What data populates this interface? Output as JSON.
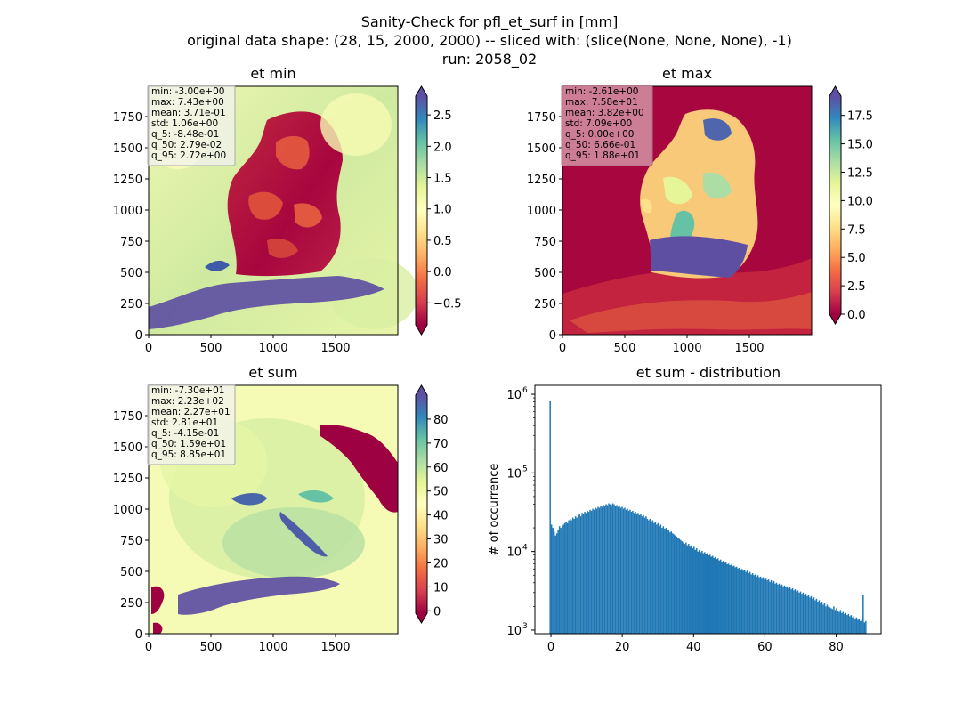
{
  "figure": {
    "title_lines": [
      "Sanity-Check for pfl_et_surf in [mm]",
      "original data shape: (28, 15, 2000, 2000) -- sliced with: (slice(None, None, None), -1)",
      "run: 2058_02"
    ]
  },
  "colors": {
    "spectral": [
      "#9e0142",
      "#d53e4f",
      "#f46d43",
      "#fdae61",
      "#fee08b",
      "#ffffbf",
      "#e6f598",
      "#abdda4",
      "#66c2a5",
      "#3288bd",
      "#5e4fa2"
    ],
    "hist_bar": "#1f77b4",
    "stats_box_light": "#f2f2f2",
    "stats_box_dark": "#d08ba0"
  },
  "chart_data": [
    {
      "type": "heatmap",
      "title": "et min",
      "x_ticks": [
        "0",
        "500",
        "1000",
        "1500"
      ],
      "y_ticks": [
        "0",
        "250",
        "500",
        "750",
        "1000",
        "1250",
        "1500",
        "1750"
      ],
      "xlim": [
        0,
        2000
      ],
      "ylim": [
        0,
        2000
      ],
      "colorbar": {
        "min": -0.85,
        "max": 2.8,
        "ticks": [
          -0.5,
          0.0,
          0.5,
          1.0,
          1.5,
          2.0,
          2.5
        ],
        "tick_labels": [
          "−0.5",
          "0.0",
          "0.5",
          "1.0",
          "1.5",
          "2.0",
          "2.5"
        ],
        "extend": "both"
      },
      "stats": [
        "min: -3.00e+00",
        "max: 7.43e+00",
        "mean: 3.71e-01",
        "std: 1.06e+00",
        "q_5: -8.48e-01",
        "q_50: 2.79e-02",
        "q_95: 2.72e+00"
      ]
    },
    {
      "type": "heatmap",
      "title": "et max",
      "x_ticks": [
        "0",
        "500",
        "1000",
        "1500"
      ],
      "y_ticks": [
        "0",
        "250",
        "500",
        "750",
        "1000",
        "1250",
        "1500",
        "1750"
      ],
      "xlim": [
        0,
        2000
      ],
      "ylim": [
        0,
        2000
      ],
      "colorbar": {
        "min": 0.0,
        "max": 19.2,
        "ticks": [
          0.0,
          2.5,
          5.0,
          7.5,
          10.0,
          12.5,
          15.0,
          17.5
        ],
        "tick_labels": [
          "0.0",
          "2.5",
          "5.0",
          "7.5",
          "10.0",
          "12.5",
          "15.0",
          "17.5"
        ],
        "extend": "both"
      },
      "stats": [
        "min: -2.61e+00",
        "max: 7.58e+01",
        "mean: 3.82e+00",
        "std: 7.09e+00",
        "q_5: 0.00e+00",
        "q_50: 6.66e-01",
        "q_95: 1.88e+01"
      ]
    },
    {
      "type": "heatmap",
      "title": "et sum",
      "x_ticks": [
        "0",
        "500",
        "1000",
        "1500"
      ],
      "y_ticks": [
        "0",
        "250",
        "500",
        "750",
        "1000",
        "1250",
        "1500",
        "1750"
      ],
      "xlim": [
        0,
        2000
      ],
      "ylim": [
        0,
        2000
      ],
      "colorbar": {
        "min": -1.0,
        "max": 90.0,
        "ticks": [
          0,
          10,
          20,
          30,
          40,
          50,
          60,
          70,
          80
        ],
        "tick_labels": [
          "0",
          "10",
          "20",
          "30",
          "40",
          "50",
          "60",
          "70",
          "80"
        ],
        "extend": "both"
      },
      "stats": [
        "min: -7.30e+01",
        "max: 2.23e+02",
        "mean: 2.27e+01",
        "std: 2.81e+01",
        "q_5: -4.15e-01",
        "q_50: 1.59e+01",
        "q_95: 8.85e+01"
      ]
    },
    {
      "type": "bar",
      "title": "et sum - distribution",
      "xlabel": "",
      "ylabel": "# of occurrence",
      "log_y": true,
      "xlim": [
        -4.5,
        92.6
      ],
      "ylim": [
        900,
        1300000
      ],
      "x_ticks": [
        0,
        20,
        40,
        60,
        80
      ],
      "x_tick_labels": [
        "0",
        "20",
        "40",
        "60",
        "80"
      ],
      "y_ticks": [
        1000,
        10000,
        100000,
        1000000
      ],
      "y_tick_labels": [
        "10",
        "10",
        "10",
        "10"
      ],
      "y_tick_exponents": [
        "3",
        "4",
        "5",
        "6"
      ],
      "bin_range": [
        -0.4,
        88.5
      ],
      "peak_bin": {
        "x": -0.2,
        "count": 820000
      },
      "counts": [
        820000,
        22000,
        20000,
        18000,
        16000,
        17000,
        19000,
        21000,
        20000,
        21000,
        22000,
        23000,
        24000,
        23000,
        25000,
        26000,
        25000,
        27000,
        26000,
        28000,
        27000,
        29000,
        30000,
        28000,
        31000,
        30000,
        32000,
        31000,
        33000,
        32000,
        34000,
        33000,
        35000,
        34000,
        36000,
        35000,
        37000,
        36000,
        38000,
        37000,
        39000,
        38000,
        40000,
        39000,
        41000,
        40000,
        39000,
        41000,
        40000,
        38000,
        39000,
        37000,
        38000,
        36000,
        37000,
        35000,
        36000,
        34000,
        35000,
        33000,
        34000,
        32000,
        33000,
        31000,
        32000,
        30000,
        31000,
        29000,
        30000,
        28000,
        29000,
        27000,
        28000,
        26000,
        25000,
        26000,
        24000,
        25000,
        23000,
        24000,
        22000,
        23000,
        21000,
        22000,
        20000,
        21000,
        19500,
        20000,
        18500,
        19000,
        17500,
        18000,
        17000,
        16500,
        16000,
        15500,
        15000,
        14500,
        14000,
        13500,
        13000,
        12500,
        13000,
        12000,
        12500,
        11500,
        12000,
        11000,
        11500,
        10500,
        11000,
        10000,
        10500,
        9800,
        10200,
        9500,
        9800,
        9200,
        9500,
        8900,
        9100,
        8600,
        8800,
        8300,
        8500,
        8000,
        8200,
        7700,
        7900,
        7400,
        7600,
        7200,
        7300,
        6900,
        7000,
        6700,
        6800,
        6500,
        6600,
        6300,
        6400,
        6100,
        6200,
        5900,
        6000,
        5700,
        5800,
        5500,
        5700,
        5300,
        5500,
        5100,
        5300,
        5000,
        5100,
        4800,
        5000,
        4700,
        4800,
        4500,
        4700,
        4400,
        4500,
        4300,
        4400,
        4100,
        4300,
        4000,
        4200,
        3900,
        4000,
        3800,
        3900,
        3700,
        3800,
        3600,
        3700,
        3500,
        3600,
        3400,
        3500,
        3300,
        3400,
        3200,
        3300,
        3100,
        3200,
        3000,
        3100,
        2900,
        3000,
        2800,
        2900,
        2700,
        2800,
        2600,
        2700,
        2500,
        2600,
        2400,
        2500,
        2300,
        2400,
        2200,
        2300,
        2100,
        2200,
        2000,
        2100,
        2000,
        1950,
        1900,
        1850,
        2000,
        1800,
        1900,
        1750,
        1700,
        1800,
        1650,
        1700,
        1600,
        1650,
        1550,
        1600,
        1500,
        1550,
        1450,
        1500,
        1400,
        1450,
        1350,
        1400,
        1300,
        1350,
        2800,
        1250,
        1300
      ]
    }
  ]
}
